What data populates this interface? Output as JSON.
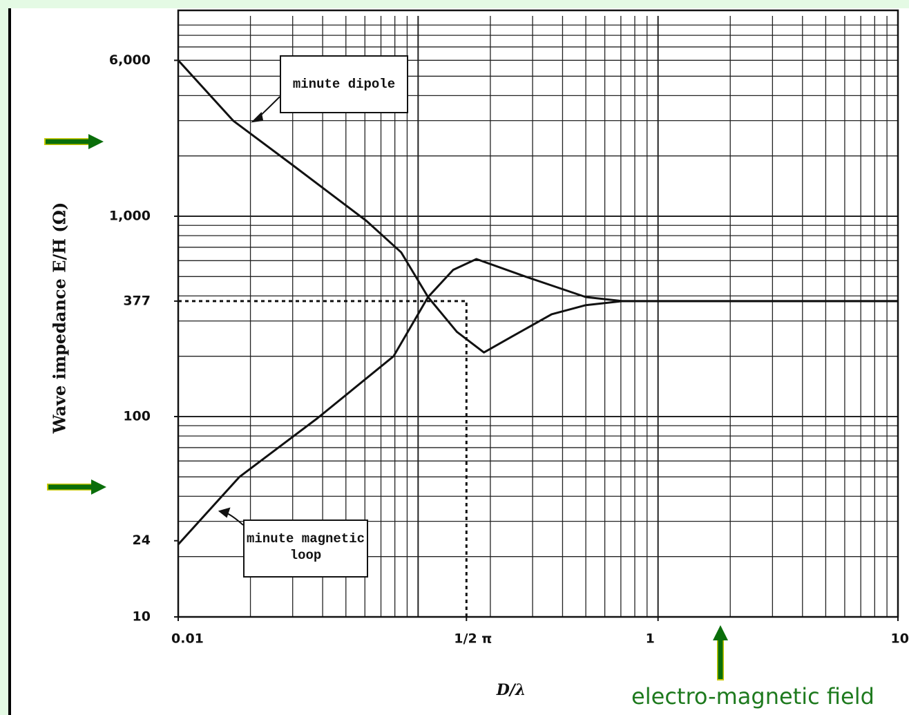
{
  "chart_data": {
    "type": "line",
    "y_label": "Wave impedance  E/H (Ω)",
    "x_label": "D/λ",
    "annotations": [
      "electro-magnetic field"
    ],
    "log_x": true,
    "log_y": true,
    "grid": true,
    "xlim": [
      0.01,
      10
    ],
    "xticks": [
      0.01,
      {
        "value": 0.159,
        "label": "1/2 π"
      },
      1,
      10
    ],
    "ylim": [
      10,
      10000
    ],
    "yticks": [
      10,
      24,
      100,
      377,
      {
        "value": 1000,
        "label": "1,000"
      },
      {
        "value": 6000,
        "label": "6,000"
      }
    ],
    "series": [
      {
        "name": "minute dipole",
        "color": "#111111",
        "x": [
          0.01,
          0.017,
          0.03,
          0.061,
          0.085,
          0.11,
          0.145,
          0.188,
          0.245,
          0.36,
          0.5,
          0.71,
          10
        ],
        "values": [
          6000,
          2990,
          1800,
          946,
          660,
          395,
          265,
          209,
          250,
          324,
          360,
          377,
          377
        ]
      },
      {
        "name": "minute magnetic loop",
        "color": "#111111",
        "x": [
          0.01,
          0.018,
          0.038,
          0.079,
          0.11,
          0.14,
          0.175,
          0.28,
          0.5,
          0.71,
          10
        ],
        "values": [
          23,
          50,
          98,
          200,
          395,
          540,
          611,
          500,
          395,
          377,
          377
        ]
      }
    ]
  }
}
